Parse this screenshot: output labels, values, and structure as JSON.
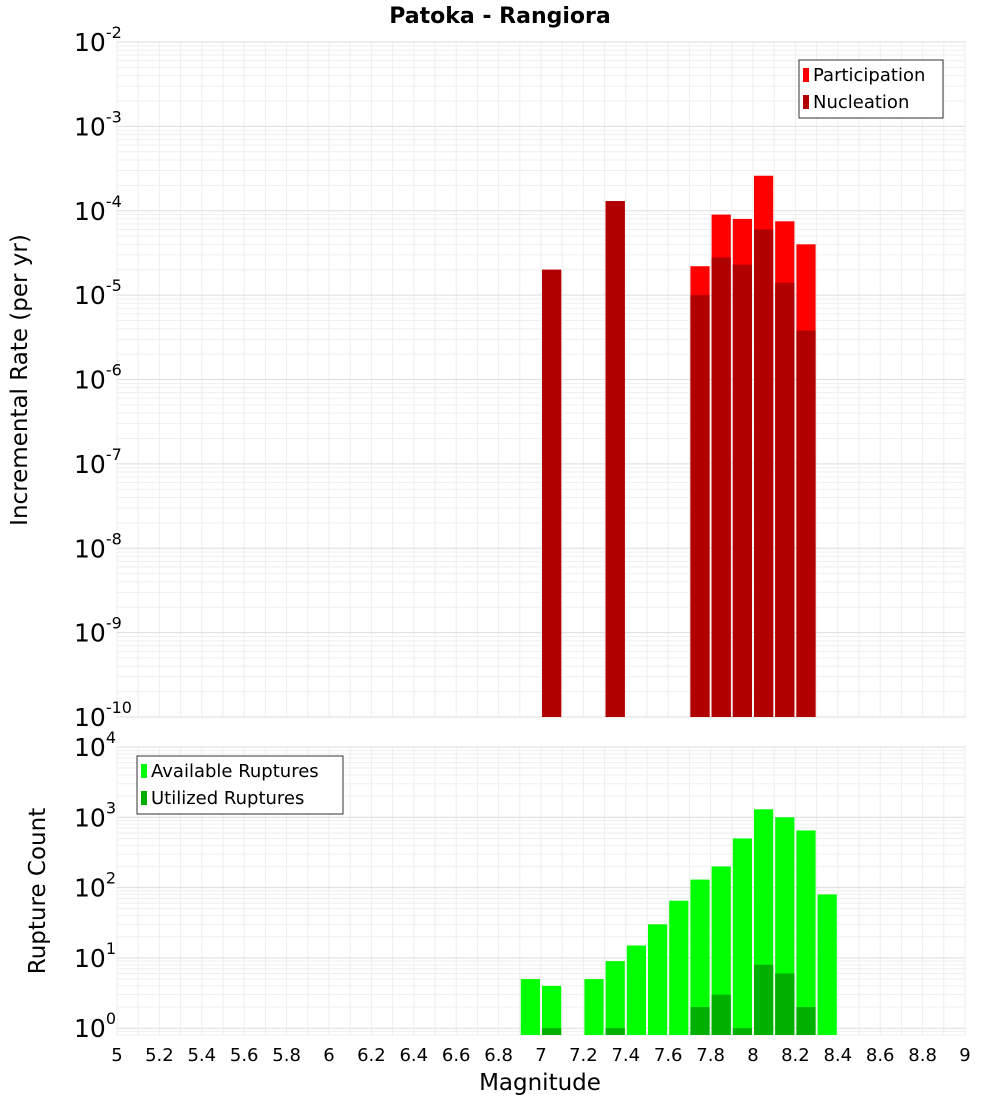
{
  "chart_data": [
    {
      "type": "bar",
      "title": "Patoka - Rangiora",
      "xlabel": "",
      "ylabel": "Incremental Rate (per yr)",
      "yscale": "log",
      "xlim": [
        5,
        9
      ],
      "ylim": [
        1e-10,
        0.01
      ],
      "y_ticks": [
        {
          "base": "10",
          "exp": "-2",
          "value": 0.01
        },
        {
          "base": "10",
          "exp": "-3",
          "value": 0.001
        },
        {
          "base": "10",
          "exp": "-4",
          "value": 0.0001
        },
        {
          "base": "10",
          "exp": "-5",
          "value": 1e-05
        },
        {
          "base": "10",
          "exp": "-6",
          "value": 1e-06
        },
        {
          "base": "10",
          "exp": "-7",
          "value": 1e-07
        },
        {
          "base": "10",
          "exp": "-8",
          "value": 1e-08
        },
        {
          "base": "10",
          "exp": "-9",
          "value": 1e-09
        },
        {
          "base": "10",
          "exp": "-10",
          "value": 1e-10
        }
      ],
      "grid": true,
      "legend_position": "top-right",
      "bar_width": 0.1,
      "series": [
        {
          "name": "Participation",
          "color": "#ff0000",
          "x": [
            7.05,
            7.35,
            7.75,
            7.85,
            7.95,
            8.05,
            8.15,
            8.25
          ],
          "values": [
            2e-05,
            0.00013,
            2.2e-05,
            9e-05,
            8e-05,
            0.00026,
            7.5e-05,
            4e-05
          ]
        },
        {
          "name": "Nucleation",
          "color": "#b00000",
          "x": [
            7.05,
            7.35,
            7.75,
            7.85,
            7.95,
            8.05,
            8.15,
            8.25
          ],
          "values": [
            2e-05,
            0.00013,
            1e-05,
            2.8e-05,
            2.3e-05,
            6e-05,
            1.4e-05,
            3.8e-06
          ]
        }
      ]
    },
    {
      "type": "bar",
      "xlabel": "Magnitude",
      "ylabel": "Rupture Count",
      "yscale": "log",
      "xlim": [
        5,
        9
      ],
      "ylim": [
        0.8,
        10000
      ],
      "x_ticks": [
        "5",
        "5.2",
        "5.4",
        "5.6",
        "5.8",
        "6",
        "6.2",
        "6.4",
        "6.6",
        "6.8",
        "7",
        "7.2",
        "7.4",
        "7.6",
        "7.8",
        "8",
        "8.2",
        "8.4",
        "8.6",
        "8.8",
        "9"
      ],
      "y_ticks": [
        {
          "base": "10",
          "exp": "4",
          "value": 10000
        },
        {
          "base": "10",
          "exp": "3",
          "value": 1000
        },
        {
          "base": "10",
          "exp": "2",
          "value": 100
        },
        {
          "base": "10",
          "exp": "1",
          "value": 10
        },
        {
          "base": "10",
          "exp": "0",
          "value": 1
        }
      ],
      "grid": true,
      "legend_position": "top-left",
      "bar_width": 0.1,
      "series": [
        {
          "name": "Available Ruptures",
          "color": "#00ff00",
          "x": [
            6.95,
            7.05,
            7.25,
            7.35,
            7.45,
            7.55,
            7.65,
            7.75,
            7.85,
            7.95,
            8.05,
            8.15,
            8.25,
            8.35
          ],
          "values": [
            5,
            4,
            5,
            9,
            15,
            30,
            65,
            130,
            200,
            500,
            1300,
            1000,
            650,
            80
          ]
        },
        {
          "name": "Utilized Ruptures",
          "color": "#00b000",
          "x": [
            7.05,
            7.35,
            7.75,
            7.85,
            7.95,
            8.05,
            8.15,
            8.25
          ],
          "values": [
            1,
            1,
            2,
            3,
            1,
            8,
            6,
            2
          ]
        }
      ]
    }
  ]
}
